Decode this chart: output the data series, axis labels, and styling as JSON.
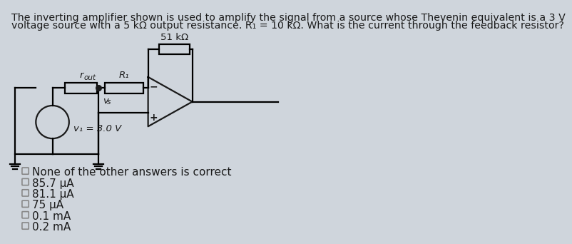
{
  "title_line1": "The inverting amplifier shown is used to amplify the signal from a source whose Thevenin equivalent is a 3 V",
  "title_line2": "voltage source with a 5 kΩ output resistance. R₁ = 10 kΩ. What is the current through the feedback resistor?",
  "background_color": "#cfd5dc",
  "circuit_color": "#1a1a1a",
  "text_color": "#1a1a1a",
  "feedback_label": "51 kΩ",
  "r1_label": "R₁",
  "rout_label": "r",
  "rout_sub": "out",
  "vs_label": "v",
  "vs_sub": "s",
  "v1_label": "v₁ = 3.0 V",
  "plus_label": "+",
  "minus_label": "−",
  "choices": [
    "None of the other answers is correct",
    "85.7 μA",
    "81.1 μA",
    "75 μA",
    "0.1 mA",
    "0.2 mA"
  ],
  "choice_font_size": 11,
  "title_font_size": 10.2
}
